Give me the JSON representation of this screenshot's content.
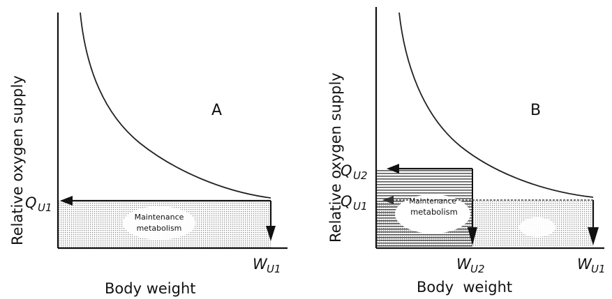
{
  "panel_a": {
    "letter": "A",
    "y_axis_label": "Relative oxygen supply",
    "x_axis_label": "Body weight",
    "q_label": "Q",
    "q_sub": "U1",
    "w_label": "W",
    "w_sub": "U1",
    "region_label_line1": "Maintenance",
    "region_label_line2": "metabolism"
  },
  "panel_b": {
    "letter": "B",
    "y_axis_label": "Relative oxygen supply",
    "x_axis_label": "Body  weight",
    "q2_label": "Q",
    "q2_sub": "U2",
    "q1_label": "Q",
    "q1_sub": "U1",
    "w2_label": "W",
    "w2_sub": "U2",
    "w1_label": "W",
    "w1_sub": "U1",
    "region_label_line1": "Maintenance",
    "region_label_line2": "metabolism"
  },
  "colors": {
    "ink": "#111111",
    "stipple": "#888888",
    "hatch": "#333333"
  }
}
